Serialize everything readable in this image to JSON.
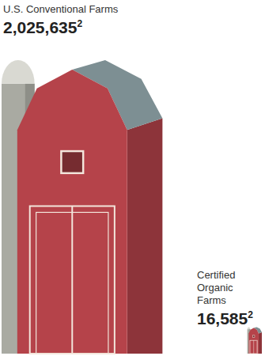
{
  "chart_data": {
    "type": "pictograph",
    "categories": [
      "U.S. Conventional Farms",
      "Certified Organic Farms"
    ],
    "values": [
      2025635,
      16585
    ],
    "value_labels": [
      "2,025,635",
      "16,585"
    ],
    "footnote_marks": [
      "2",
      "2"
    ],
    "data_labels": true,
    "color": "#b5434a"
  }
}
